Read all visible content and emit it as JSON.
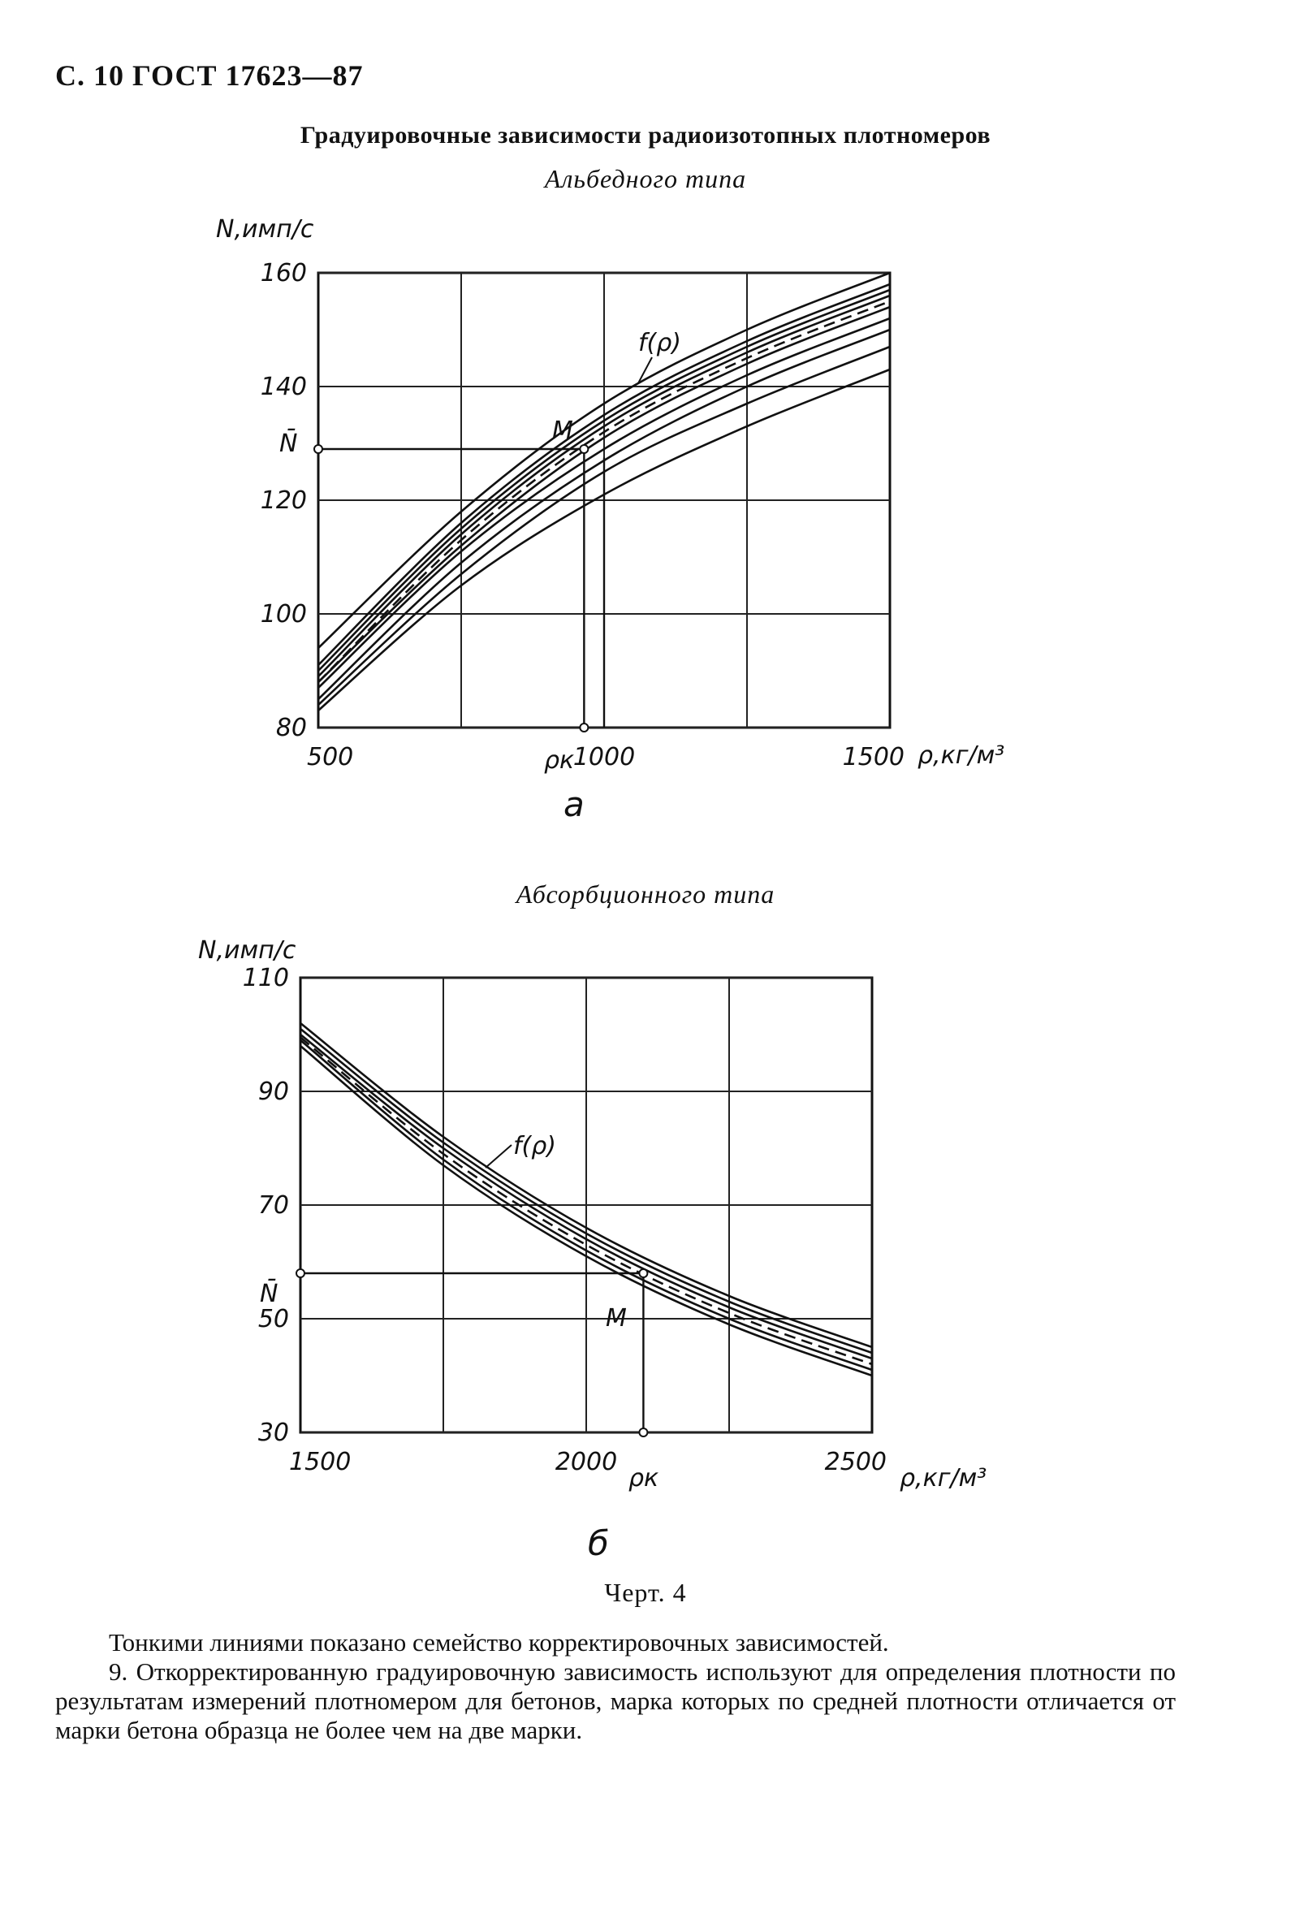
{
  "header": {
    "page_ref": "С. 10 ГОСТ 17623—87"
  },
  "title": "Градуировочные зависимости радиоизотопных плотномеров",
  "chart_a": {
    "subtitle": "Альбедного типа",
    "ylabel": "N,имп/с",
    "xlabel": "ρ,кг/м³",
    "panel": "а",
    "point_label": "M",
    "curve_label": "f(ρ)",
    "nbar_label": "N̄",
    "rho_k_label": "ρк"
  },
  "chart_b": {
    "subtitle": "Абсорбционного типа",
    "ylabel": "N,имп/с",
    "xlabel": "ρ,кг/м³",
    "panel": "б",
    "point_label": "M",
    "curve_label": "f(ρ)",
    "nbar_label": "N̄",
    "rho_k_label": "ρк"
  },
  "chart_data": [
    {
      "type": "line",
      "title": "Альбедного типа",
      "xlabel": "ρ,кг/м³",
      "ylabel": "N,имп/с",
      "xlim": [
        500,
        1500
      ],
      "ylim": [
        80,
        160
      ],
      "x_ticks": [
        "500",
        "1000",
        "1500"
      ],
      "y_ticks": [
        "80",
        "100",
        "120",
        "140",
        "160"
      ],
      "grid": true,
      "x": [
        500,
        750,
        1000,
        1250,
        1500
      ],
      "series": [
        {
          "values": [
            94,
            118,
            137,
            150,
            160
          ]
        },
        {
          "values": [
            91,
            116,
            135,
            148,
            158
          ]
        },
        {
          "values": [
            90,
            115,
            134,
            147,
            157
          ]
        },
        {
          "values": [
            89,
            114,
            133,
            146,
            156
          ]
        },
        {
          "values": [
            88,
            113,
            132,
            145,
            155
          ],
          "style": "dashed"
        },
        {
          "values": [
            88,
            112,
            131,
            144,
            154
          ]
        },
        {
          "values": [
            87,
            111,
            129,
            142,
            152
          ]
        },
        {
          "values": [
            85,
            109,
            127,
            140,
            150
          ]
        },
        {
          "values": [
            84,
            107,
            125,
            137,
            147
          ]
        },
        {
          "values": [
            83,
            105,
            121,
            133,
            143
          ]
        }
      ],
      "annotations": {
        "N_bar": 129,
        "rho_k": 965,
        "guide_x2": 1000
      }
    },
    {
      "type": "line",
      "title": "Абсорбционного типа",
      "xlabel": "ρ,кг/м³",
      "ylabel": "N,имп/с",
      "xlim": [
        1500,
        2500
      ],
      "ylim": [
        30,
        110
      ],
      "x_ticks": [
        "1500",
        "2000",
        "2500"
      ],
      "y_ticks": [
        "30",
        "50",
        "70",
        "90",
        "110"
      ],
      "grid": true,
      "x": [
        1500,
        1750,
        2000,
        2250,
        2500
      ],
      "series": [
        {
          "values": [
            102,
            82,
            66,
            54,
            45
          ]
        },
        {
          "values": [
            101,
            81,
            65,
            53,
            44
          ]
        },
        {
          "values": [
            100,
            80,
            64,
            52,
            43
          ]
        },
        {
          "values": [
            99.5,
            79,
            63,
            51,
            42
          ],
          "style": "dashed"
        },
        {
          "values": [
            99,
            78,
            62,
            50,
            41
          ]
        },
        {
          "values": [
            98,
            77,
            61,
            49,
            40
          ]
        }
      ],
      "annotations": {
        "N_bar": 58,
        "rho_k": 2100
      }
    }
  ],
  "figure_caption": "Черт. 4",
  "paragraphs": [
    "Тонкими линиями показано семейство корректировочных зависимостей.",
    "9. Откорректированную градуировочную зависимость используют для определения плотности по результатам измерений плотномером для бетонов, марка которых по средней плотности отличается от марки бетона образца не более чем на две марки."
  ]
}
